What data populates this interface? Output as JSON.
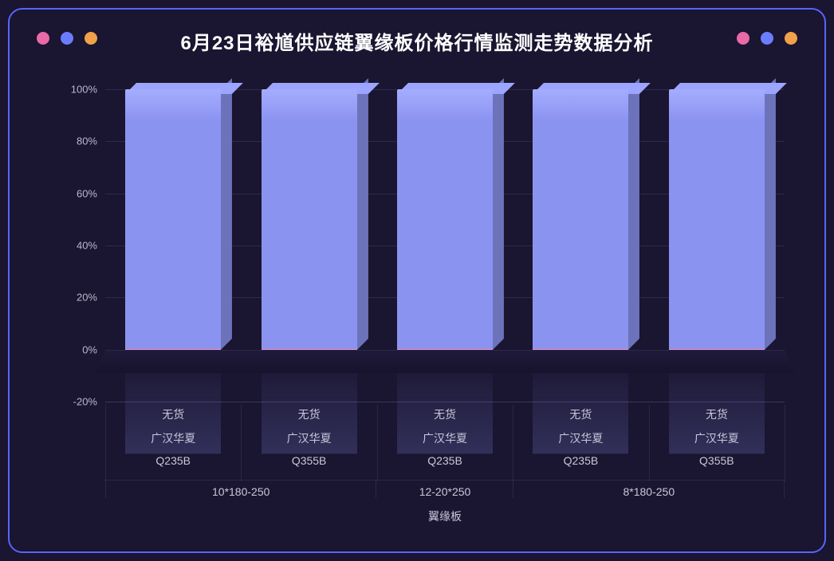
{
  "title": "6月23日裕馗供应链翼缘板价格行情监测走势数据分析",
  "title_fontsize": 24,
  "background_color": "#1a1530",
  "frame_border_color": "#5566ff",
  "decor_dots": {
    "left": [
      "#e86aa6",
      "#6b7dff",
      "#f0a14a"
    ],
    "right": [
      "#e86aa6",
      "#6b7dff",
      "#f0a14a"
    ]
  },
  "chart": {
    "type": "bar",
    "stacked_100pct": true,
    "y_axis": {
      "min_pct": -20,
      "max_pct": 100,
      "tick_step_pct": 20,
      "ticks": [
        "-20%",
        "0%",
        "20%",
        "40%",
        "60%",
        "80%",
        "100%"
      ],
      "tick_color": "#b8b8d0",
      "grid_color": "rgba(100,110,160,0.25)"
    },
    "bar_color": "#8b93f0",
    "bar_side_color": "#6d76d6",
    "bar_top_color": "#a5adff",
    "base_stripe_color": "#ff8fb0",
    "bar_width_pct": 72,
    "categories": [
      {
        "level1": "无货",
        "level2": "广汉华夏",
        "level3": "Q235B"
      },
      {
        "level1": "无货",
        "level2": "广汉华夏",
        "level3": "Q355B"
      },
      {
        "level1": "无货",
        "level2": "广汉华夏",
        "level3": "Q235B"
      },
      {
        "level1": "无货",
        "level2": "广汉华夏",
        "level3": "Q235B"
      },
      {
        "level1": "无货",
        "level2": "广汉华夏",
        "level3": "Q355B"
      }
    ],
    "values_pct": [
      100,
      100,
      100,
      100,
      100
    ],
    "group_level4": [
      {
        "label": "10*180-250",
        "span": 2
      },
      {
        "label": "12-20*250",
        "span": 1
      },
      {
        "label": "8*180-250",
        "span": 2
      }
    ],
    "x_axis_bottom_label": "翼缘板",
    "x_label_color": "#c8c8dc"
  }
}
